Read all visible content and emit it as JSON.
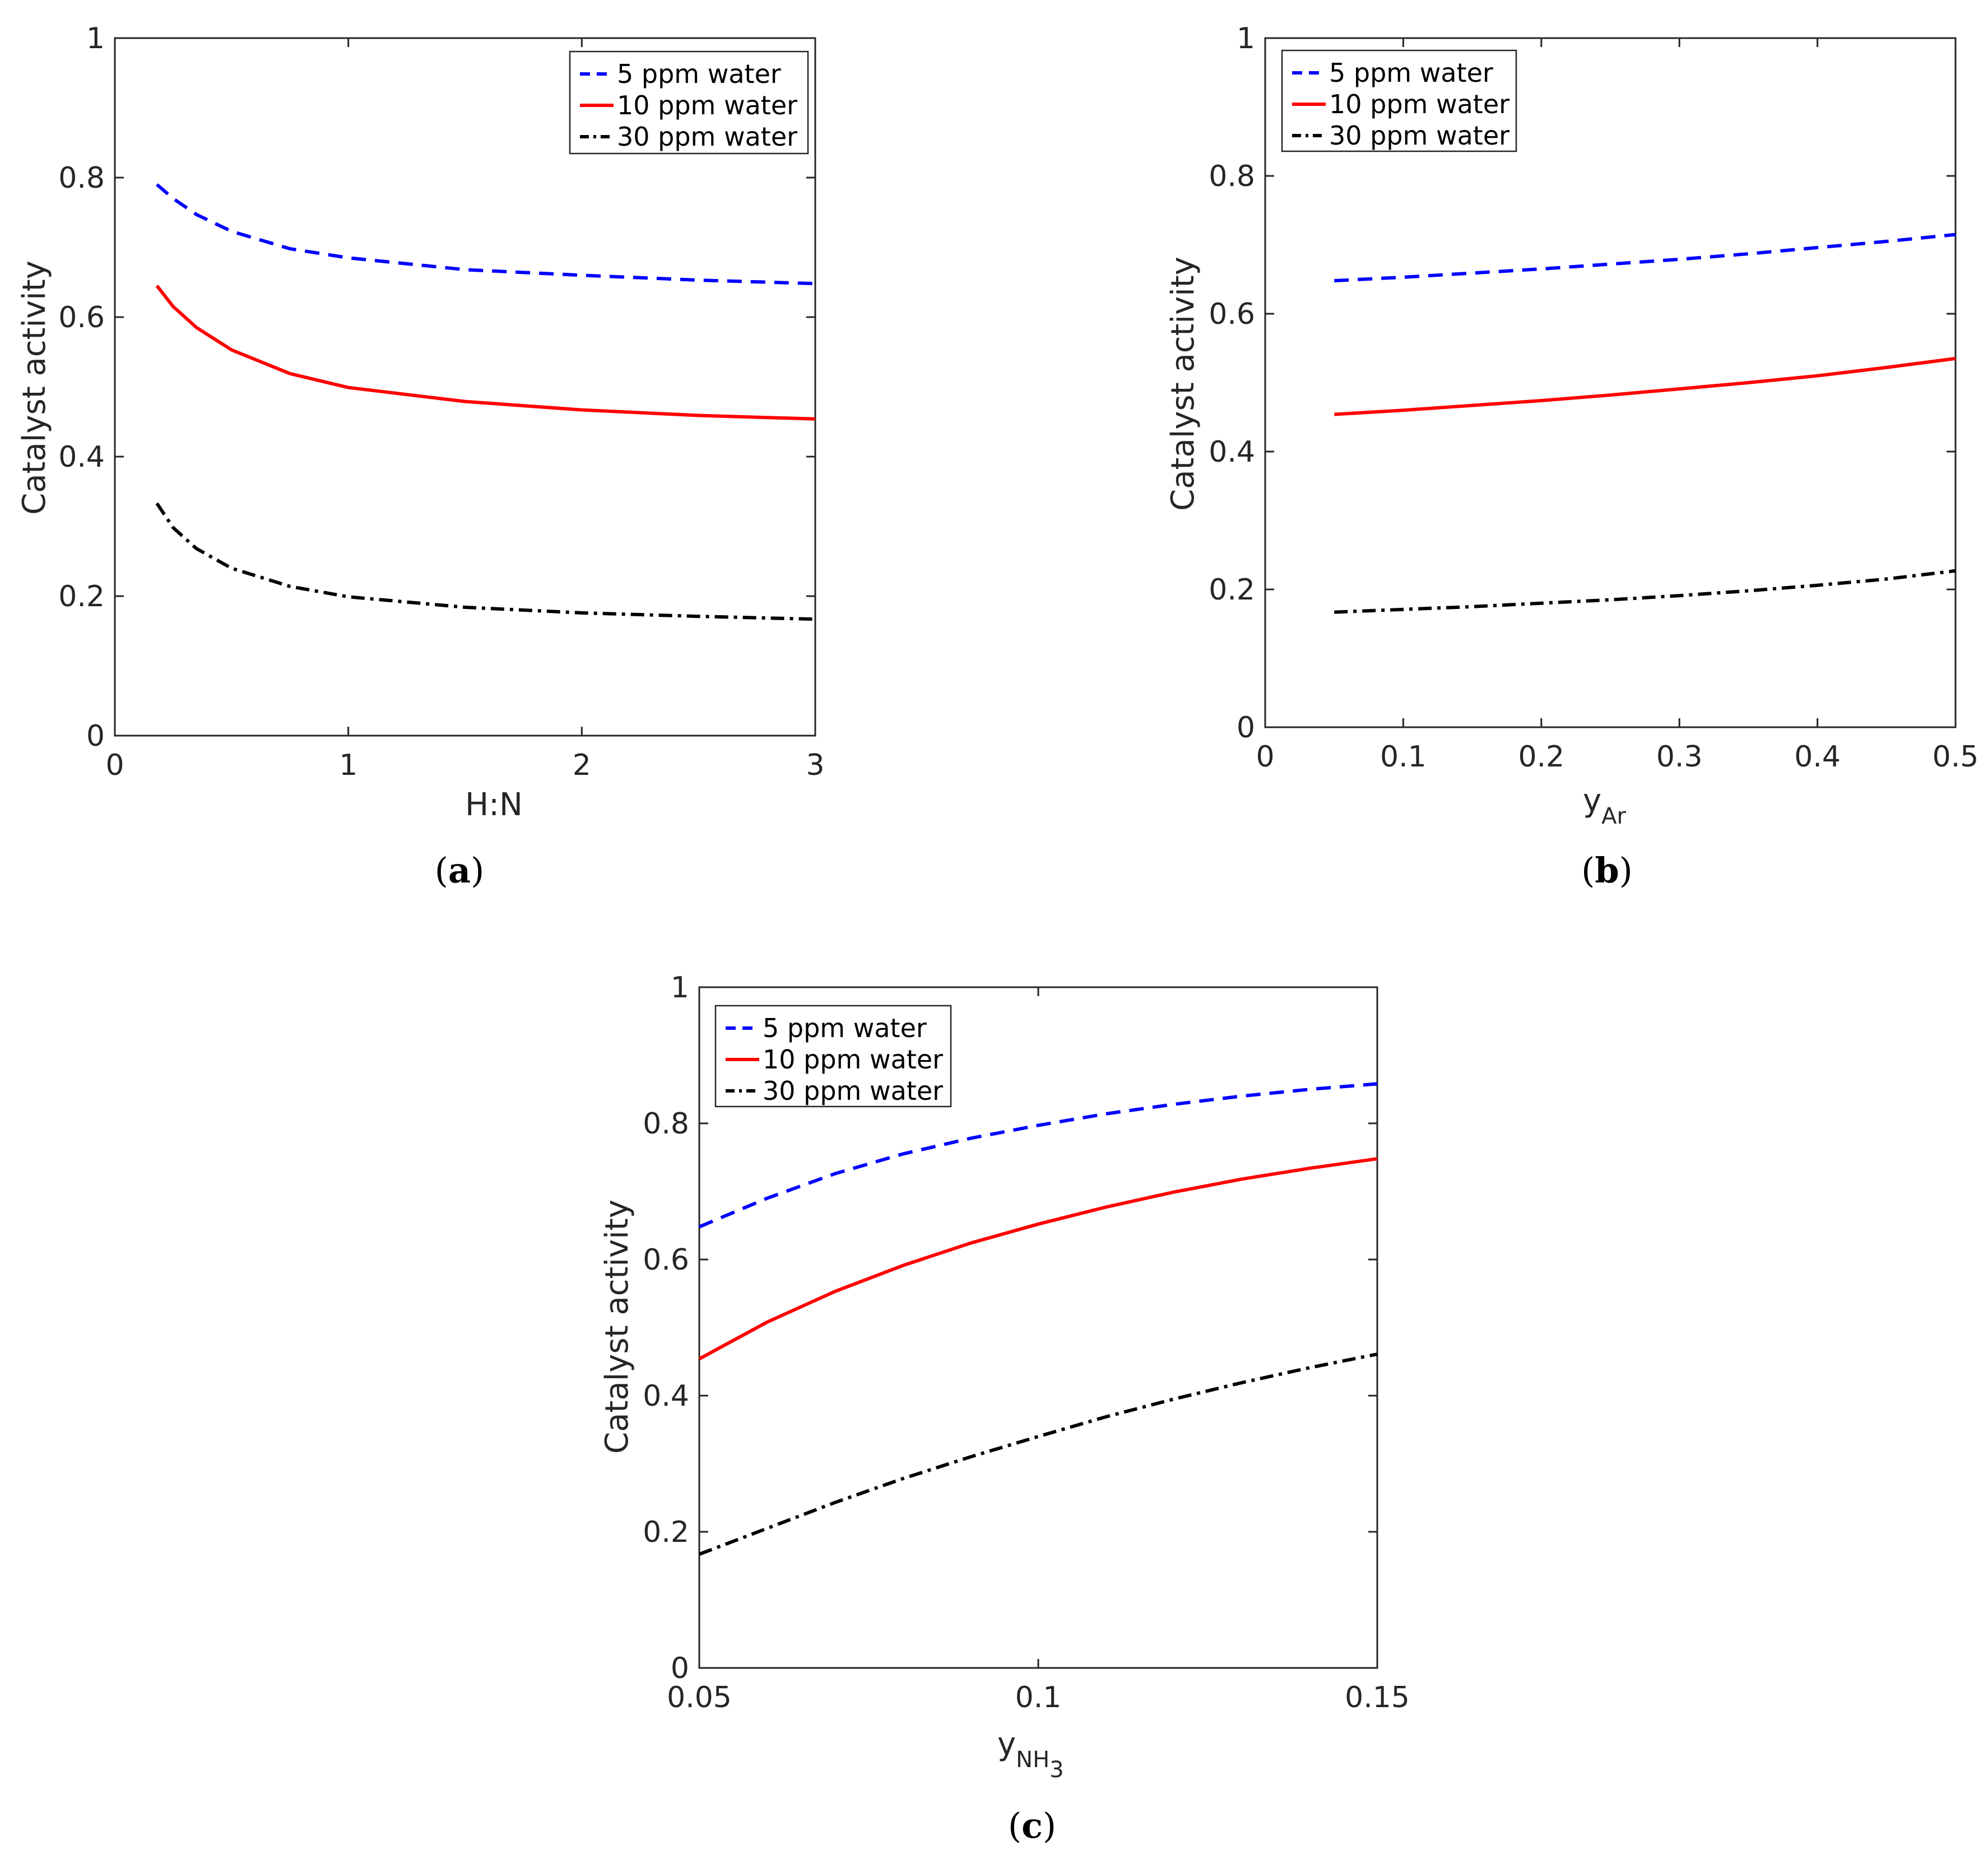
{
  "colors": {
    "series_5ppm": "#0000ff",
    "series_10ppm": "#ff0000",
    "series_30ppm": "#000000",
    "axis": "#262626"
  },
  "chart_data": [
    {
      "id": "a",
      "type": "line",
      "caption_open": "(",
      "caption_letter": "a",
      "caption_close": ")",
      "xlabel": "H:N",
      "xlabel_sub": "",
      "ylabel": "Catalyst activity",
      "xlim": [
        0,
        3
      ],
      "ylim": [
        0,
        1
      ],
      "xticks": [
        0,
        1,
        2,
        3
      ],
      "xtick_labels": [
        "0",
        "1",
        "2",
        "3"
      ],
      "yticks": [
        0,
        0.2,
        0.4,
        0.6,
        0.8,
        1
      ],
      "ytick_labels": [
        "0",
        "0.2",
        "0.4",
        "0.6",
        "0.8",
        "1"
      ],
      "legend_position": "top-right",
      "x": [
        0.18,
        0.25,
        0.35,
        0.5,
        0.75,
        1.0,
        1.5,
        2.0,
        2.5,
        3.0
      ],
      "series": [
        {
          "name": "5 ppm water",
          "style": "dashed",
          "color": "#0000ff",
          "values": [
            0.79,
            0.77,
            0.747,
            0.723,
            0.698,
            0.685,
            0.668,
            0.66,
            0.653,
            0.648
          ]
        },
        {
          "name": "10 ppm water",
          "style": "solid",
          "color": "#ff0000",
          "values": [
            0.645,
            0.615,
            0.585,
            0.553,
            0.519,
            0.499,
            0.479,
            0.467,
            0.459,
            0.454
          ]
        },
        {
          "name": "30 ppm water",
          "style": "dashdot",
          "color": "#000000",
          "values": [
            0.333,
            0.298,
            0.268,
            0.24,
            0.214,
            0.199,
            0.184,
            0.176,
            0.171,
            0.167
          ]
        }
      ]
    },
    {
      "id": "b",
      "type": "line",
      "caption_open": "(",
      "caption_letter": "b",
      "caption_close": ")",
      "xlabel": "y",
      "xlabel_sub": "Ar",
      "ylabel": "Catalyst activity",
      "xlim": [
        0,
        0.5
      ],
      "ylim": [
        0,
        1
      ],
      "xticks": [
        0,
        0.1,
        0.2,
        0.3,
        0.4,
        0.5
      ],
      "xtick_labels": [
        "0",
        "0.1",
        "0.2",
        "0.3",
        "0.4",
        "0.5"
      ],
      "yticks": [
        0,
        0.2,
        0.4,
        0.6,
        0.8,
        1
      ],
      "ytick_labels": [
        "0",
        "0.2",
        "0.4",
        "0.6",
        "0.8",
        "1"
      ],
      "legend_position": "top-left",
      "x": [
        0.05,
        0.1,
        0.15,
        0.2,
        0.25,
        0.3,
        0.35,
        0.4,
        0.45,
        0.5
      ],
      "series": [
        {
          "name": "5 ppm water",
          "style": "dashed",
          "color": "#0000ff",
          "values": [
            0.648,
            0.653,
            0.659,
            0.665,
            0.672,
            0.679,
            0.687,
            0.696,
            0.705,
            0.715
          ]
        },
        {
          "name": "10 ppm water",
          "style": "solid",
          "color": "#ff0000",
          "values": [
            0.454,
            0.46,
            0.467,
            0.474,
            0.482,
            0.491,
            0.5,
            0.51,
            0.522,
            0.535
          ]
        },
        {
          "name": "30 ppm water",
          "style": "dashdot",
          "color": "#000000",
          "values": [
            0.167,
            0.171,
            0.175,
            0.18,
            0.185,
            0.191,
            0.198,
            0.206,
            0.215,
            0.227
          ]
        }
      ]
    },
    {
      "id": "c",
      "type": "line",
      "caption_open": "(",
      "caption_letter": "c",
      "caption_close": ")",
      "xlabel": "y",
      "xlabel_sub": "NH",
      "xlabel_subsub": "3",
      "ylabel": "Catalyst activity",
      "xlim": [
        0.05,
        0.15
      ],
      "ylim": [
        0,
        1
      ],
      "xticks": [
        0.05,
        0.1,
        0.15
      ],
      "xtick_labels": [
        "0.05",
        "0.1",
        "0.15"
      ],
      "yticks": [
        0,
        0.2,
        0.4,
        0.6,
        0.8,
        1
      ],
      "ytick_labels": [
        "0",
        "0.2",
        "0.4",
        "0.6",
        "0.8",
        "1"
      ],
      "legend_position": "top-left",
      "x": [
        0.05,
        0.06,
        0.07,
        0.08,
        0.09,
        0.1,
        0.11,
        0.12,
        0.13,
        0.14,
        0.15
      ],
      "series": [
        {
          "name": "5 ppm water",
          "style": "dashed",
          "color": "#0000ff",
          "values": [
            0.648,
            0.69,
            0.726,
            0.755,
            0.778,
            0.797,
            0.814,
            0.828,
            0.84,
            0.85,
            0.858
          ]
        },
        {
          "name": "10 ppm water",
          "style": "solid",
          "color": "#ff0000",
          "values": [
            0.454,
            0.508,
            0.553,
            0.591,
            0.624,
            0.652,
            0.677,
            0.699,
            0.718,
            0.734,
            0.748
          ]
        },
        {
          "name": "30 ppm water",
          "style": "dashdot",
          "color": "#000000",
          "values": [
            0.167,
            0.205,
            0.243,
            0.278,
            0.31,
            0.34,
            0.369,
            0.395,
            0.419,
            0.441,
            0.461
          ]
        }
      ]
    }
  ]
}
